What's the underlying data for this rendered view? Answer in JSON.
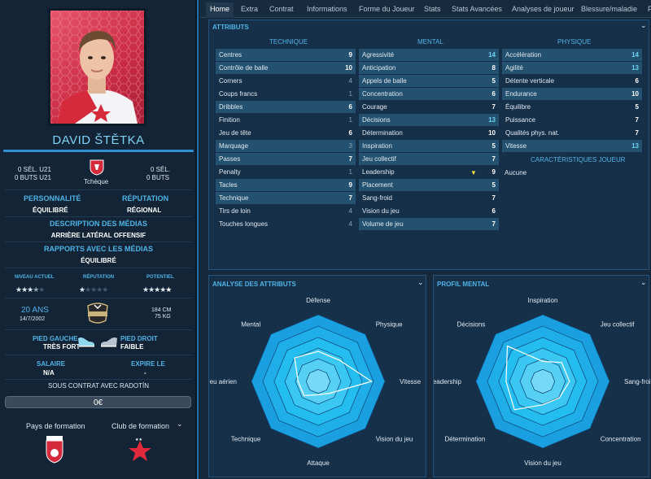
{
  "player": {
    "name": "DAVID ŠTĚTKA",
    "u21_caps": "0 SÉL. U21",
    "u21_goals": "0 BUTS U21",
    "caps": "0 SÉL.",
    "goals": "0 BUTS",
    "nation": "Tchèque",
    "personality_label": "PERSONNALITÉ",
    "personality": "ÉQUILIBRÉ",
    "reputation_label": "RÉPUTATION",
    "reputation": "RÉGIONAL",
    "media_desc_label": "DESCRIPTION DES MÉDIAS",
    "media_desc": "ARRIÈRE LATÉRAL OFFENSIF",
    "media_rel_label": "RAPPORTS AVEC LES MÉDIAS",
    "media_rel": "ÉQUILIBRÉ",
    "current_label": "NIVEAU ACTUEL",
    "rep_label": "RÉPUTATION",
    "potential_label": "POTENTIEL",
    "current_stars": 3.5,
    "rep_stars": 1,
    "potential_stars": 4.5,
    "age": "20 ANS",
    "dob": "14/7/2002",
    "height": "184 CM",
    "weight": "75 KG",
    "left_foot_label": "PIED GAUCHE",
    "left_foot": "TRÈS FORT",
    "right_foot_label": "PIED DROIT",
    "right_foot": "FAIBLE",
    "salary_label": "SALAIRE",
    "salary": "N/A",
    "expires_label": "EXPIRE LE",
    "expires": "-",
    "contract": "SOUS CONTRAT AVEC RADOTÍN",
    "value": "0€",
    "training_country_label": "Pays de formation",
    "training_club_label": "Club de formation"
  },
  "tabs": [
    "Home",
    "Extra",
    "Contrat",
    "Informations",
    "Forme du Joueur",
    "Stats",
    "Stats Avancées",
    "Analyses de joueur",
    "Blessure/maladie",
    "F"
  ],
  "attributes": {
    "title": "ATTRIBUTS",
    "tech_label": "TECHNIQUE",
    "mental_label": "MENTAL",
    "phys_label": "PHYSIQUE",
    "traits_label": "CARACTÉRISTIQUES JOUEUR",
    "traits": "Aucune",
    "technique": [
      [
        "Centres",
        "9"
      ],
      [
        "Contrôle de balle",
        "10"
      ],
      [
        "Corners",
        "4"
      ],
      [
        "Coups francs",
        "1"
      ],
      [
        "Dribbles",
        "6"
      ],
      [
        "Finition",
        "1"
      ],
      [
        "Jeu de tête",
        "6"
      ],
      [
        "Marquage",
        "3"
      ],
      [
        "Passes",
        "7"
      ],
      [
        "Penalty",
        "1"
      ],
      [
        "Tacles",
        "9"
      ],
      [
        "Technique",
        "7"
      ],
      [
        "Tirs de loin",
        "4"
      ],
      [
        "Touches longues",
        "4"
      ]
    ],
    "mental": [
      [
        "Agressivité",
        "14"
      ],
      [
        "Anticipation",
        "8"
      ],
      [
        "Appels de balle",
        "5"
      ],
      [
        "Concentration",
        "6"
      ],
      [
        "Courage",
        "7"
      ],
      [
        "Décisions",
        "13"
      ],
      [
        "Détermination",
        "10"
      ],
      [
        "Inspiration",
        "5"
      ],
      [
        "Jeu collectif",
        "7"
      ],
      [
        "Leadership",
        "9"
      ],
      [
        "Placement",
        "5"
      ],
      [
        "Sang-froid",
        "7"
      ],
      [
        "Vision du jeu",
        "6"
      ],
      [
        "Volume de jeu",
        "7"
      ]
    ],
    "physique": [
      [
        "Accélération",
        "14"
      ],
      [
        "Agilité",
        "13"
      ],
      [
        "Détente verticale",
        "6"
      ],
      [
        "Endurance",
        "10"
      ],
      [
        "Équilibre",
        "5"
      ],
      [
        "Puissance",
        "7"
      ],
      [
        "Qualités phys. nat.",
        "7"
      ],
      [
        "Vitesse",
        "13"
      ]
    ]
  },
  "radar1": {
    "title": "ANALYSE DES ATTRIBUTS",
    "labels": [
      "Défense",
      "Physique",
      "Vitesse",
      "Vision du jeu",
      "Attaque",
      "Technique",
      "Jeu aérien",
      "Mental"
    ],
    "values": [
      0.45,
      0.45,
      0.8,
      0.25,
      0.2,
      0.3,
      0.3,
      0.5
    ]
  },
  "radar2": {
    "title": "PROFIL MENTAL",
    "labels": [
      "Inspiration",
      "Jeu collectif",
      "Sang-froid",
      "Concentration",
      "Vision du jeu",
      "Détermination",
      "Leadership",
      "Décisions"
    ],
    "values": [
      0.3,
      0.4,
      0.4,
      0.35,
      0.35,
      0.6,
      0.55,
      0.75
    ]
  }
}
